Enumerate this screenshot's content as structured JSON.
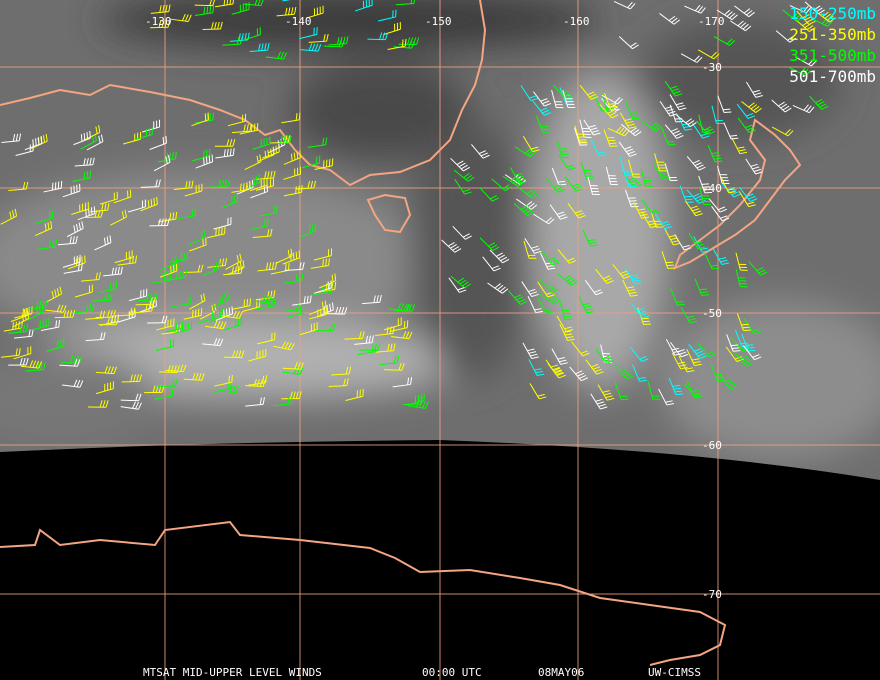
{
  "map": {
    "longitude_labels": [
      "-130",
      "-140",
      "-150",
      "-160",
      "-170"
    ],
    "latitude_labels": [
      "-30",
      "-40",
      "-50",
      "-60",
      "-70"
    ],
    "legend": [
      {
        "label": "150-250mb",
        "color": "#00ffff"
      },
      {
        "label": "251-350mb",
        "color": "#ffff00"
      },
      {
        "label": "351-500mb",
        "color": "#00ff00"
      },
      {
        "label": "501-700mb",
        "color": "#ffffff"
      }
    ],
    "footer": {
      "title": "MTSAT MID-UPPER LEVEL WINDS",
      "time": "00:00 UTC",
      "date": "08MAY06",
      "source": "UW-CIMSS"
    }
  }
}
